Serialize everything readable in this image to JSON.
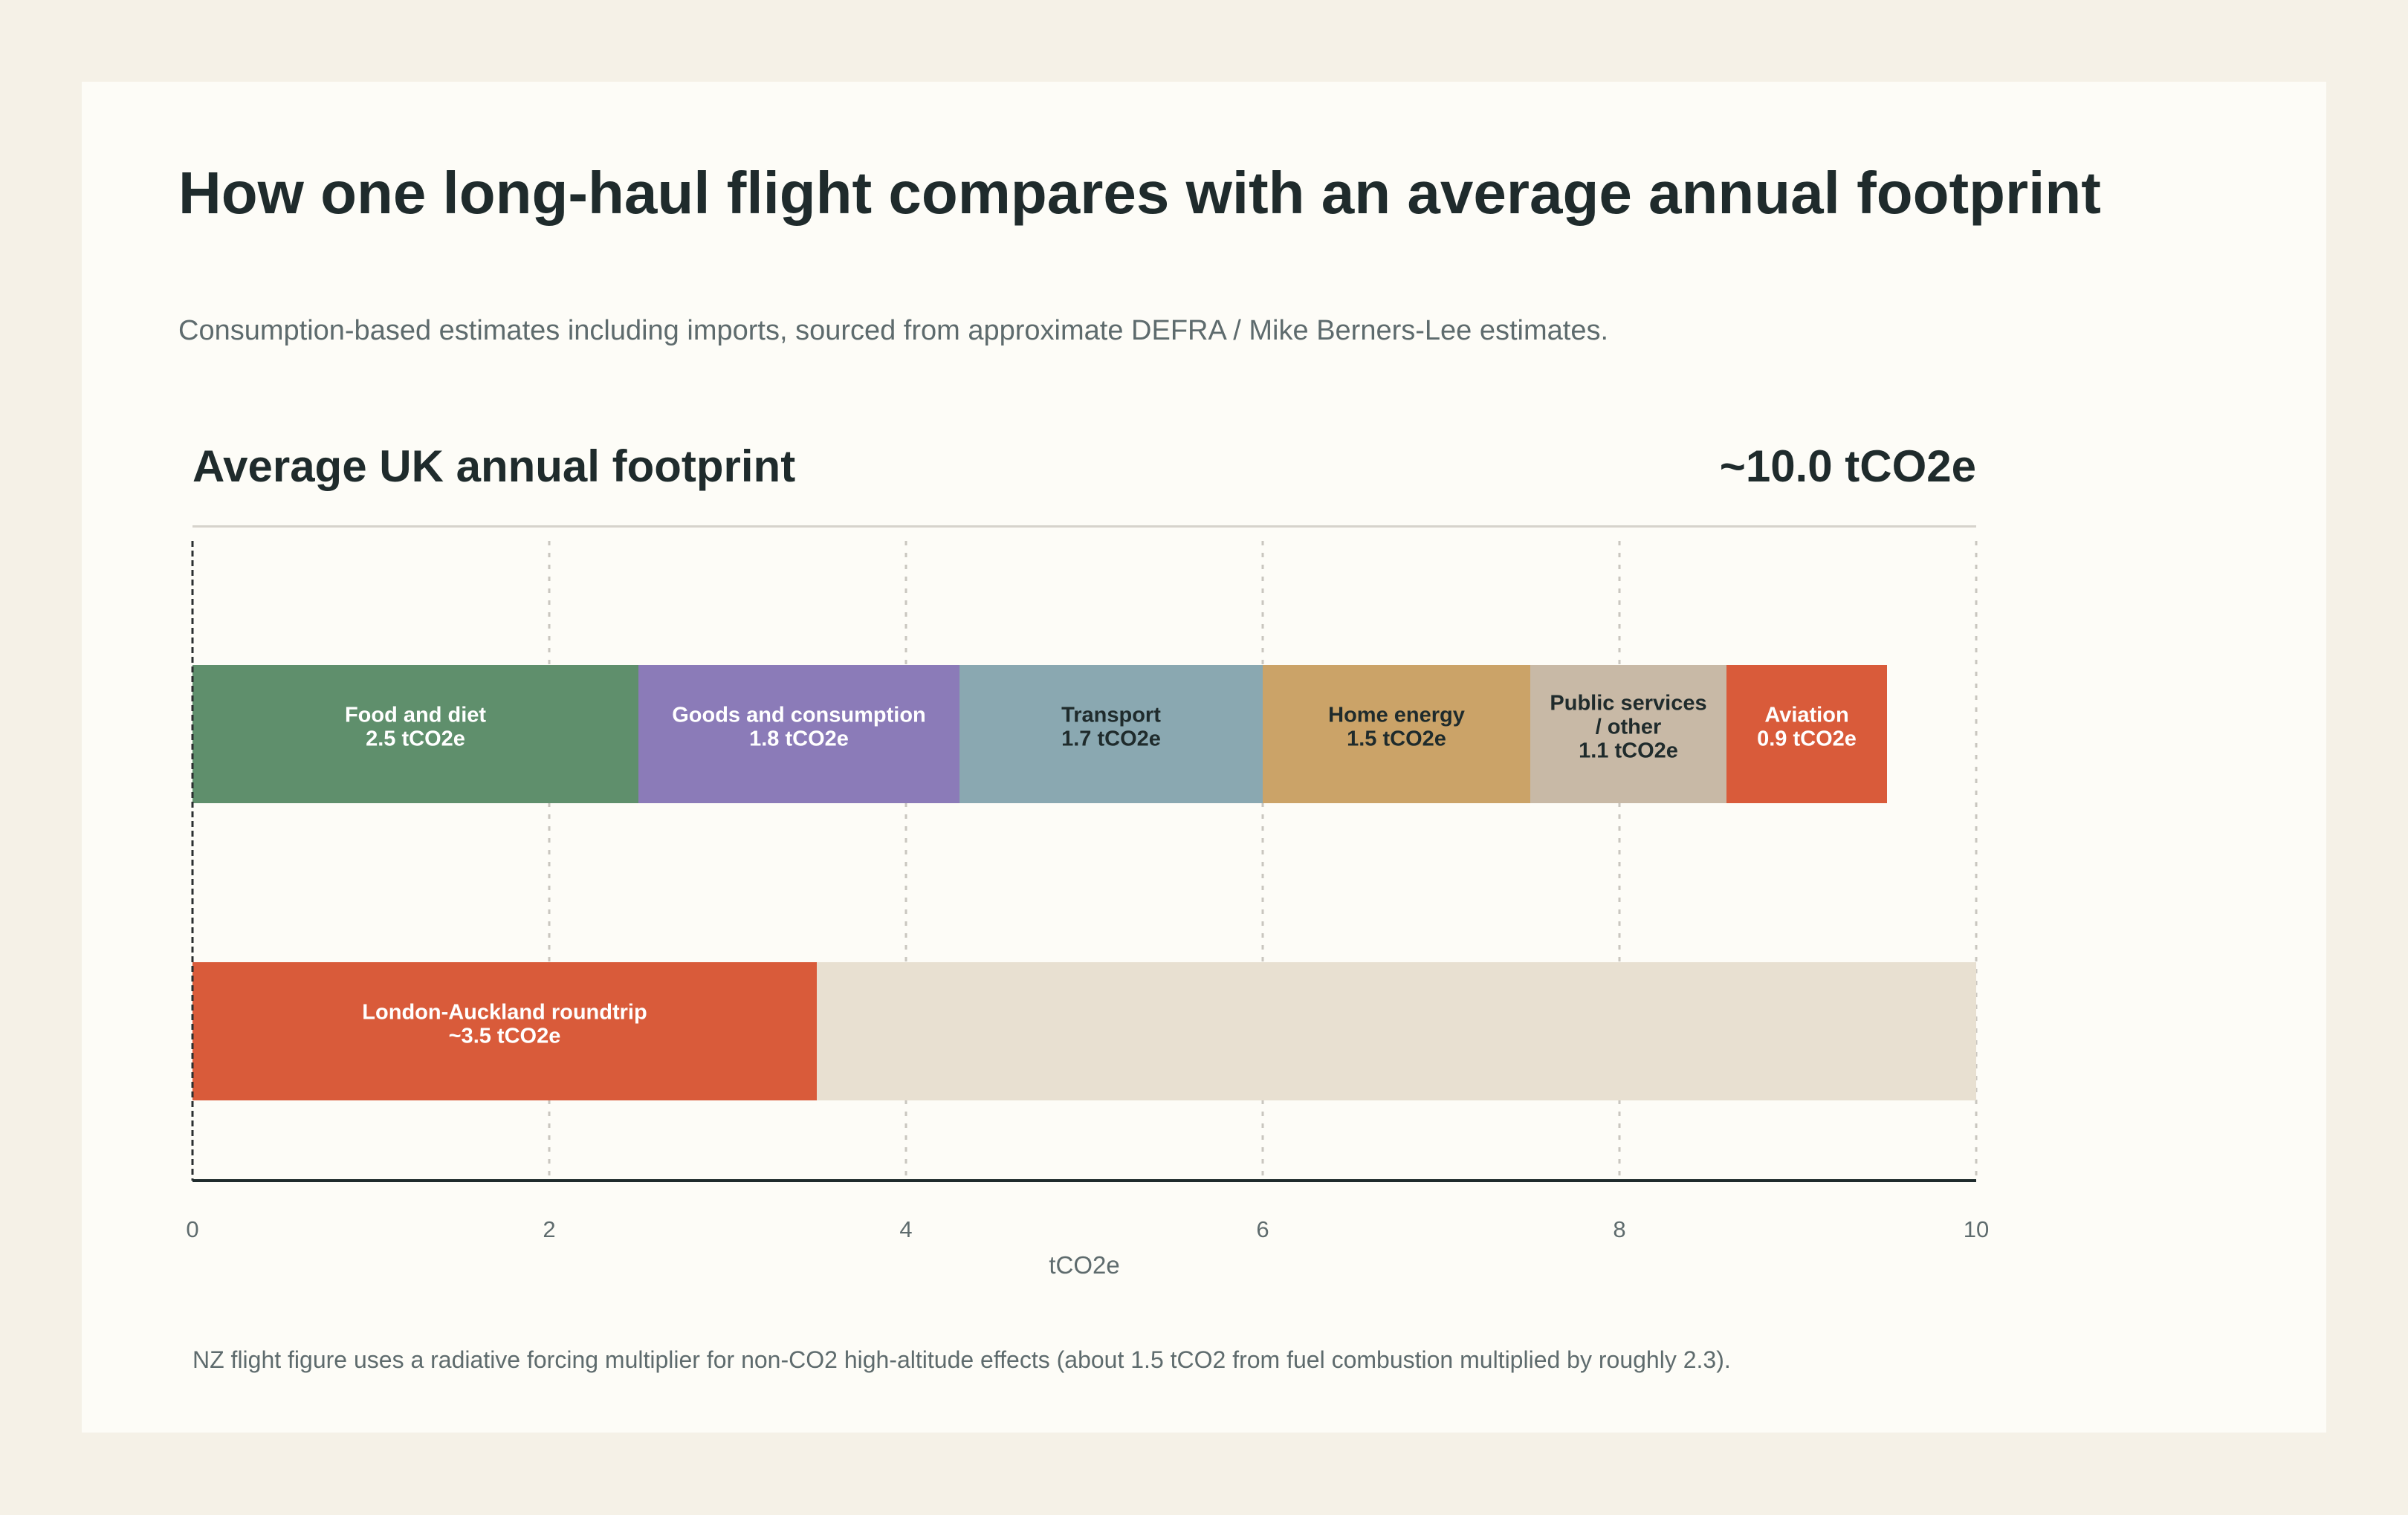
{
  "title": "How one long-haul flight compares with an average annual footprint",
  "subtitle": "Consumption-based estimates including imports, sourced from approximate DEFRA / Mike Berners-Lee estimates.",
  "chart_heading": "Average UK annual footprint",
  "chart_total": "~10.0 tCO2e",
  "footnote": "NZ flight figure uses a radiative forcing multiplier for non-CO2 high-altitude effects (about 1.5 tCO2 from fuel combustion multiplied by roughly 2.3).",
  "colors": {
    "page_background": "#f5f1e7",
    "card_background": "#fdfcf7",
    "text": "#1f2b2c",
    "muted_text": "#5e6b6d",
    "track": "#e8e0d1",
    "grid": "#c9c6bf"
  },
  "chart_data": {
    "type": "bar",
    "orientation": "horizontal",
    "stacked": true,
    "xlabel": "tCO2e",
    "ylabel": "",
    "xlim": [
      0,
      10
    ],
    "xticks": [
      0,
      2,
      4,
      6,
      8,
      10
    ],
    "grid": true,
    "rows": [
      {
        "segments": [
          {
            "lines": [
              "Food and diet",
              "2.5 tCO2e"
            ],
            "value": 2.5,
            "color": "#5f8f6c",
            "label_color": "#ffffff"
          },
          {
            "lines": [
              "Goods and consumption",
              "1.8 tCO2e"
            ],
            "value": 1.8,
            "color": "#8b7bb8",
            "label_color": "#ffffff"
          },
          {
            "lines": [
              "Transport",
              "1.7 tCO2e"
            ],
            "value": 1.7,
            "color": "#8aa8b1",
            "label_color": "#1f2b2c"
          },
          {
            "lines": [
              "Home energy",
              "1.5 tCO2e"
            ],
            "value": 1.5,
            "color": "#cba368",
            "label_color": "#1f2b2c"
          },
          {
            "lines": [
              "Public services",
              "/ other",
              "1.1 tCO2e"
            ],
            "value": 1.1,
            "color": "#c8b9a6",
            "label_color": "#1f2b2c"
          },
          {
            "lines": [
              "Aviation",
              "0.9 tCO2e"
            ],
            "value": 0.9,
            "color": "#d95b3a",
            "label_color": "#ffffff"
          }
        ]
      },
      {
        "track_value": 10,
        "segments": [
          {
            "lines": [
              "London-Auckland roundtrip",
              "~3.5 tCO2e"
            ],
            "value": 3.5,
            "color": "#d95b3a",
            "label_color": "#ffffff"
          }
        ]
      }
    ]
  }
}
